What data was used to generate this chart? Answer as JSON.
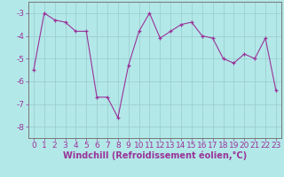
{
  "x": [
    0,
    1,
    2,
    3,
    4,
    5,
    6,
    7,
    8,
    9,
    10,
    11,
    12,
    13,
    14,
    15,
    16,
    17,
    18,
    19,
    20,
    21,
    22,
    23
  ],
  "y": [
    -5.5,
    -3.0,
    -3.3,
    -3.4,
    -3.8,
    -3.8,
    -6.7,
    -6.7,
    -7.6,
    -5.3,
    -3.8,
    -3.0,
    -4.1,
    -3.8,
    -3.5,
    -3.4,
    -4.0,
    -4.1,
    -5.0,
    -5.2,
    -4.8,
    -5.0,
    -4.1,
    -6.4
  ],
  "line_color": "#993399",
  "marker": "+",
  "marker_color": "#993399",
  "bg_color": "#b3e8e8",
  "grid_color": "#99cccc",
  "xlabel": "Windchill (Refroidissement éolien,°C)",
  "ylim": [
    -8.5,
    -2.5
  ],
  "xlim": [
    -0.5,
    23.5
  ],
  "yticks": [
    -8,
    -7,
    -6,
    -5,
    -4,
    -3
  ],
  "xticks": [
    0,
    1,
    2,
    3,
    4,
    5,
    6,
    7,
    8,
    9,
    10,
    11,
    12,
    13,
    14,
    15,
    16,
    17,
    18,
    19,
    20,
    21,
    22,
    23
  ],
  "tick_color": "#993399",
  "fontsize_xlabel": 7.0,
  "fontsize_tick": 6.5
}
